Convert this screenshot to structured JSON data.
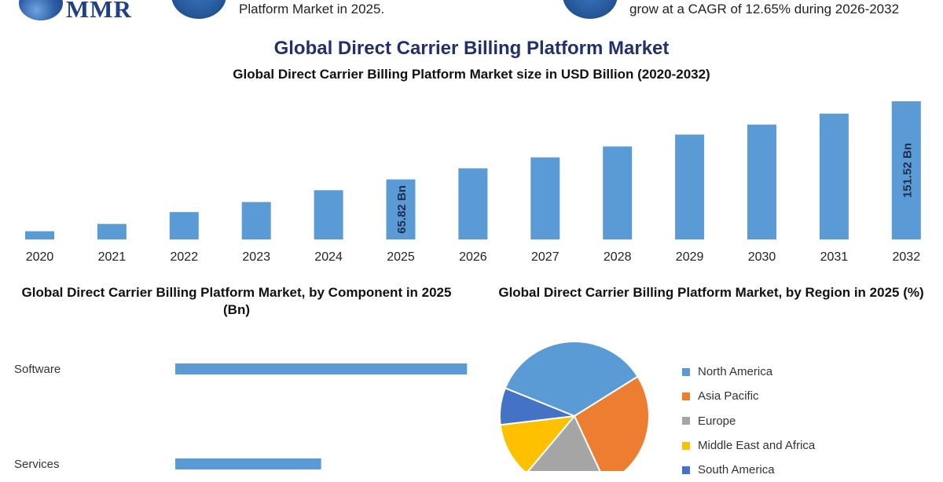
{
  "header": {
    "logo_text": "MMR",
    "stat_left": "Platform Market in 2025.",
    "stat_right": "grow at a CAGR of 12.65% during 2026-2032"
  },
  "colors": {
    "bar": "#5b9bd5",
    "title": "#22316b",
    "north_america": "#5b9bd5",
    "asia_pacific": "#ed7d31",
    "europe": "#a5a5a5",
    "middle_east_africa": "#ffc000",
    "south_america": "#4472c4"
  },
  "chart_data": [
    {
      "type": "bar",
      "title": "Global Direct Carrier Billing Platform Market",
      "subtitle": "Global Direct Carrier Billing Platform Market size in USD Billion (2020-2032)",
      "categories": [
        "2020",
        "2021",
        "2022",
        "2023",
        "2024",
        "2025",
        "2026",
        "2027",
        "2028",
        "2029",
        "2030",
        "2031",
        "2032"
      ],
      "values": [
        9,
        17,
        30,
        41,
        54,
        65.82,
        78,
        90,
        102,
        115,
        126,
        138,
        151.52
      ],
      "data_labels": {
        "2025": "65.82 Bn",
        "2032": "151.52 Bn"
      },
      "ylim": [
        0,
        155
      ]
    },
    {
      "type": "bar",
      "orientation": "horizontal",
      "title": "Global Direct Carrier Billing Platform Market, by Component in 2025 (Bn)",
      "categories": [
        "Software",
        "Services"
      ],
      "values": [
        47,
        23.5
      ],
      "xlim": [
        0,
        50
      ]
    },
    {
      "type": "pie",
      "title": "Global Direct Carrier Billing Platform Market, by Region in 2025 (%)",
      "labels": [
        "North America",
        "Asia Pacific",
        "Europe",
        "Middle East and Africa",
        "South America"
      ],
      "values": [
        35,
        27,
        18,
        12,
        8
      ]
    }
  ]
}
